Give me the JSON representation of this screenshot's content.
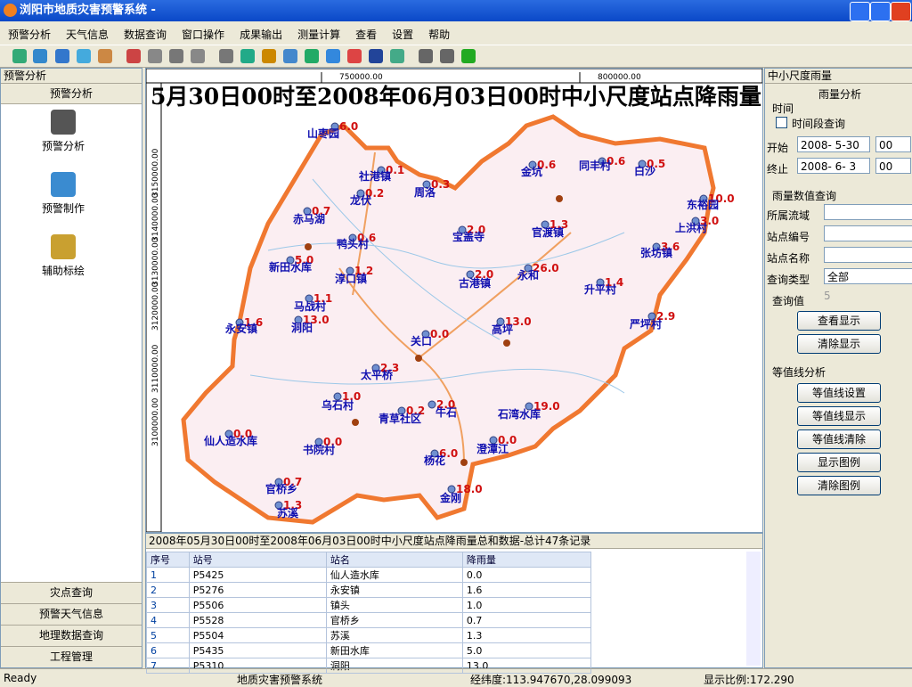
{
  "window": {
    "title": "浏阳市地质灾害预警系统 -"
  },
  "menu": [
    "预警分析",
    "天气信息",
    "数据查询",
    "窗口操作",
    "成果输出",
    "测量计算",
    "查看",
    "设置",
    "帮助"
  ],
  "left_panel": {
    "title": "预警分析",
    "section": "预警分析",
    "items": [
      "预警分析",
      "预警制作",
      "辅助标绘"
    ],
    "tabs": [
      "灾点查询",
      "预警天气信息",
      "地理数据查询",
      "工程管理"
    ]
  },
  "map": {
    "title": "5月30日00时至2008年06月03日00时中小尺度站点降雨量",
    "top_ruler": [
      "750000.00",
      "800000.00"
    ],
    "left_ruler": [
      "3150000.00",
      "3140000.00",
      "3130000.00",
      "3120000.00",
      "3110000.00",
      "3100000.00"
    ],
    "stations": [
      {
        "name": "山枣园",
        "value": "6.0"
      },
      {
        "name": "社港镇",
        "value": "0.1"
      },
      {
        "name": "龙伏",
        "value": "0.2"
      },
      {
        "name": "周洛",
        "value": "0.3"
      },
      {
        "name": "金坑",
        "value": "0.6"
      },
      {
        "name": "同丰村",
        "value": "0.6"
      },
      {
        "name": "白沙",
        "value": "0.5"
      },
      {
        "name": "东裕园",
        "value": "10.0"
      },
      {
        "name": "上洪村",
        "value": "3.0"
      },
      {
        "name": "赤马湖",
        "value": "0.7"
      },
      {
        "name": "鸭头村",
        "value": "0.6"
      },
      {
        "name": "宝盖寺",
        "value": "2.0"
      },
      {
        "name": "官渡镇",
        "value": "1.3"
      },
      {
        "name": "张坊镇",
        "value": "3.6"
      },
      {
        "name": "新田水库",
        "value": "5.0"
      },
      {
        "name": "淳口镇",
        "value": "1.2"
      },
      {
        "name": "古港镇",
        "value": "2.0"
      },
      {
        "name": "永和",
        "value": "26.0"
      },
      {
        "name": "升平村",
        "value": "1.4"
      },
      {
        "name": "马战村",
        "value": "1.1"
      },
      {
        "name": "永安镇",
        "value": "1.6"
      },
      {
        "name": "洞阳",
        "value": "13.0"
      },
      {
        "name": "严坪村",
        "value": "2.9"
      },
      {
        "name": "关口",
        "value": "0.0"
      },
      {
        "name": "高坪",
        "value": "13.0"
      },
      {
        "name": "太平桥",
        "value": "2.3"
      },
      {
        "name": "乌石村",
        "value": "1.0"
      },
      {
        "name": "青草社区",
        "value": "0.2"
      },
      {
        "name": "牛石",
        "value": "2.0"
      },
      {
        "name": "石湾水库",
        "value": "19.0"
      },
      {
        "name": "仙人造水库",
        "value": "0.0"
      },
      {
        "name": "书院村",
        "value": "0.0"
      },
      {
        "name": "杨花",
        "value": "6.0"
      },
      {
        "name": "澄潭江",
        "value": "0.0"
      },
      {
        "name": "官桥乡",
        "value": "0.7"
      },
      {
        "name": "金刚",
        "value": "18.0"
      },
      {
        "name": "苏溪",
        "value": "1.3"
      }
    ]
  },
  "right_panel": {
    "title": "中小尺度雨量",
    "group": "雨量分析",
    "time_group": "时间",
    "checkbox": "时间段查询",
    "start_label": "开始",
    "start_date": "2008- 5-30",
    "start_hour": "00",
    "end_label": "终止",
    "end_date": "2008- 6- 3",
    "end_hour": "00",
    "query_group": "雨量数值查询",
    "basin_label": "所属流域",
    "code_label": "站点编号",
    "name_label": "站点名称",
    "type_label": "查询类型",
    "type_value": "全部",
    "query_value_label": "查询值",
    "query_value": "5",
    "buttons": [
      "查看显示",
      "清除显示"
    ],
    "contour_group": "等值线分析",
    "contour_buttons": [
      "等值线设置",
      "等值线显示",
      "等值线清除",
      "显示图例",
      "清除图例"
    ]
  },
  "table": {
    "title": "2008年05月30日00时至2008年06月03日00时中小尺度站点降雨量总和数据-总计47条记录",
    "headers": [
      "序号",
      "站号",
      "站名",
      "降雨量"
    ],
    "rows": [
      [
        "1",
        "P5425",
        "仙人造水库",
        "0.0"
      ],
      [
        "2",
        "P5276",
        "永安镇",
        "1.6"
      ],
      [
        "3",
        "P5506",
        "镇头",
        "1.0"
      ],
      [
        "4",
        "P5528",
        "官桥乡",
        "0.7"
      ],
      [
        "5",
        "P5504",
        "苏溪",
        "1.3"
      ],
      [
        "6",
        "P5435",
        "新田水库",
        "5.0"
      ],
      [
        "7",
        "P5310",
        "洞阳",
        "13.0"
      ]
    ]
  },
  "status": [
    "Ready",
    "地质灾害预警系统",
    "经纬度:113.947670,28.099093",
    "显示比例:172.290"
  ]
}
